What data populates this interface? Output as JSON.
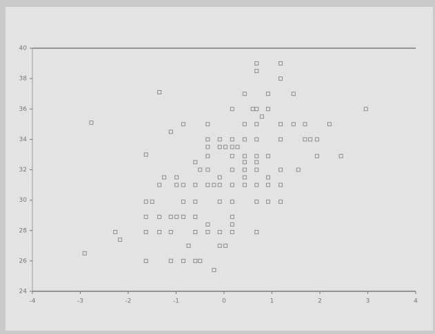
{
  "chart_data": {
    "type": "scatter",
    "color": "#8c8c8c",
    "xlim": [
      -4,
      4
    ],
    "xticks": [
      -4,
      -3,
      -2,
      -1,
      0,
      1,
      2,
      3,
      4
    ],
    "ylim": [
      24,
      40
    ],
    "yticks": [
      24,
      26,
      28,
      30,
      32,
      34,
      36,
      38,
      40
    ],
    "x": [
      0.68,
      1.18,
      0.68,
      1.18,
      -1.35,
      0.43,
      0.92,
      1.45,
      0.17,
      0.6,
      0.68,
      0.92,
      2.96,
      0.79,
      -2.77,
      -0.85,
      -0.34,
      0.43,
      0.68,
      1.18,
      1.45,
      1.69,
      2.2,
      -1.11,
      -0.34,
      -0.09,
      0.17,
      0.43,
      0.68,
      1.18,
      1.69,
      1.8,
      1.94,
      -0.34,
      -0.09,
      0.03,
      0.17,
      0.28,
      -1.63,
      -0.34,
      0.17,
      0.43,
      0.68,
      0.92,
      1.94,
      2.44,
      -0.6,
      0.43,
      0.68,
      -0.5,
      -0.34,
      0.17,
      0.43,
      0.68,
      1.18,
      1.55,
      -1.25,
      -0.99,
      -0.09,
      0.43,
      0.92,
      -1.35,
      -0.99,
      -0.85,
      -0.6,
      -0.34,
      -0.21,
      -0.09,
      0.17,
      0.43,
      0.68,
      0.92,
      1.18,
      -1.63,
      -1.5,
      -0.85,
      -0.6,
      -0.09,
      0.17,
      0.68,
      0.92,
      1.18,
      -1.63,
      -1.35,
      -1.11,
      -0.99,
      -0.85,
      -0.6,
      0.17,
      -0.34,
      0.17,
      -2.27,
      -1.63,
      -1.35,
      -1.11,
      -0.6,
      -0.34,
      -0.09,
      0.17,
      0.68,
      -2.17,
      -0.74,
      -0.09,
      0.03,
      -2.91,
      -1.63,
      -1.11,
      -0.85,
      -0.6,
      -0.5,
      -0.21
    ],
    "y": [
      39.0,
      39.0,
      38.5,
      38.0,
      37.1,
      37.0,
      37.0,
      37.0,
      36.0,
      36.0,
      36.0,
      36.0,
      36.0,
      35.5,
      35.1,
      35.0,
      35.0,
      35.0,
      35.0,
      35.0,
      35.0,
      35.0,
      35.0,
      34.5,
      34.0,
      34.0,
      34.0,
      34.0,
      34.0,
      34.0,
      34.0,
      34.0,
      34.0,
      33.5,
      33.5,
      33.5,
      33.5,
      33.5,
      33.0,
      32.9,
      32.9,
      32.9,
      32.9,
      32.9,
      32.9,
      32.9,
      32.5,
      32.5,
      32.5,
      32.0,
      32.0,
      32.0,
      32.0,
      32.0,
      32.0,
      32.0,
      31.5,
      31.5,
      31.5,
      31.5,
      31.5,
      31.0,
      31.0,
      31.0,
      31.0,
      31.0,
      31.0,
      31.0,
      31.0,
      31.0,
      31.0,
      31.0,
      31.0,
      29.9,
      29.9,
      29.9,
      29.9,
      29.9,
      29.9,
      29.9,
      29.9,
      29.9,
      28.9,
      28.9,
      28.9,
      28.9,
      28.9,
      28.9,
      28.9,
      28.4,
      28.4,
      27.9,
      27.9,
      27.9,
      27.9,
      27.9,
      27.9,
      27.9,
      27.9,
      27.9,
      27.4,
      27.0,
      27.0,
      27.0,
      26.5,
      26.0,
      26.0,
      26.0,
      26.0,
      26.0,
      25.4
    ]
  }
}
